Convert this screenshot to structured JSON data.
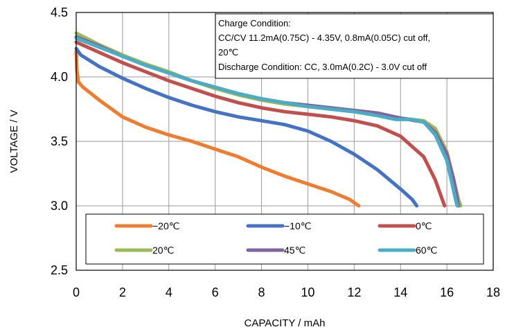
{
  "chart_data": {
    "type": "line",
    "title": "",
    "xlabel": "CAPACITY / mAh",
    "ylabel": "VOLTAGE / V",
    "xlim": [
      0,
      18
    ],
    "ylim": [
      2.5,
      4.5
    ],
    "xticks": [
      "0",
      "2",
      "4",
      "6",
      "8",
      "10",
      "12",
      "14",
      "16",
      "18"
    ],
    "yticks": [
      "2.5",
      "3.0",
      "3.5",
      "4.0",
      "4.5"
    ],
    "grid": true,
    "legend_position": "bottom inside plot",
    "annotation": {
      "lines": [
        "Charge Condition:",
        "CC/CV 11.2mA(0.75C) - 4.35V, 0.8mA(0.05C) cut off,",
        "20℃",
        "Discharge Condition: CC, 3.0mA(0.2C) - 3.0V cut off"
      ]
    },
    "series": [
      {
        "name": "−20℃",
        "color": "#ED7D31",
        "points": [
          [
            0,
            4.2
          ],
          [
            0.03,
            4.05
          ],
          [
            0.1,
            3.96
          ],
          [
            0.3,
            3.92
          ],
          [
            1,
            3.82
          ],
          [
            2,
            3.69
          ],
          [
            3,
            3.61
          ],
          [
            4,
            3.55
          ],
          [
            5,
            3.5
          ],
          [
            6,
            3.44
          ],
          [
            7,
            3.38
          ],
          [
            8,
            3.3
          ],
          [
            9,
            3.23
          ],
          [
            10,
            3.17
          ],
          [
            11,
            3.11
          ],
          [
            11.8,
            3.05
          ],
          [
            12.2,
            3.0
          ]
        ]
      },
      {
        "name": "−10℃",
        "color": "#4472C4",
        "points": [
          [
            0,
            4.22
          ],
          [
            0.2,
            4.17
          ],
          [
            1,
            4.08
          ],
          [
            2,
            3.99
          ],
          [
            3,
            3.91
          ],
          [
            4,
            3.84
          ],
          [
            5,
            3.78
          ],
          [
            6,
            3.73
          ],
          [
            7,
            3.69
          ],
          [
            8,
            3.66
          ],
          [
            9,
            3.63
          ],
          [
            10,
            3.58
          ],
          [
            11,
            3.5
          ],
          [
            12,
            3.4
          ],
          [
            13,
            3.28
          ],
          [
            14,
            3.13
          ],
          [
            14.5,
            3.05
          ],
          [
            14.7,
            3.0
          ]
        ]
      },
      {
        "name": "0℃",
        "color": "#C0504D",
        "points": [
          [
            0,
            4.27
          ],
          [
            1,
            4.19
          ],
          [
            2,
            4.11
          ],
          [
            3,
            4.04
          ],
          [
            4,
            3.97
          ],
          [
            5,
            3.91
          ],
          [
            6,
            3.85
          ],
          [
            7,
            3.8
          ],
          [
            8,
            3.76
          ],
          [
            9,
            3.73
          ],
          [
            10,
            3.71
          ],
          [
            11,
            3.69
          ],
          [
            12,
            3.66
          ],
          [
            13,
            3.62
          ],
          [
            14,
            3.54
          ],
          [
            15,
            3.38
          ],
          [
            15.5,
            3.2
          ],
          [
            15.8,
            3.05
          ],
          [
            15.9,
            3.0
          ]
        ]
      },
      {
        "name": "20℃",
        "color": "#9BBB59",
        "points": [
          [
            0,
            4.34
          ],
          [
            1,
            4.25
          ],
          [
            2,
            4.17
          ],
          [
            3,
            4.1
          ],
          [
            4,
            4.04
          ],
          [
            5,
            3.97
          ],
          [
            6,
            3.91
          ],
          [
            7,
            3.86
          ],
          [
            8,
            3.82
          ],
          [
            9,
            3.79
          ],
          [
            10,
            3.77
          ],
          [
            11,
            3.75
          ],
          [
            12,
            3.73
          ],
          [
            13,
            3.71
          ],
          [
            14,
            3.68
          ],
          [
            15,
            3.66
          ],
          [
            15.5,
            3.6
          ],
          [
            16,
            3.42
          ],
          [
            16.3,
            3.2
          ],
          [
            16.5,
            3.05
          ],
          [
            16.6,
            3.0
          ]
        ]
      },
      {
        "name": "45℃",
        "color": "#8064A2",
        "points": [
          [
            0,
            4.31
          ],
          [
            1,
            4.24
          ],
          [
            2,
            4.16
          ],
          [
            3,
            4.09
          ],
          [
            4,
            4.03
          ],
          [
            5,
            3.97
          ],
          [
            6,
            3.92
          ],
          [
            7,
            3.87
          ],
          [
            8,
            3.83
          ],
          [
            9,
            3.8
          ],
          [
            10,
            3.78
          ],
          [
            11,
            3.76
          ],
          [
            12,
            3.74
          ],
          [
            13,
            3.72
          ],
          [
            14,
            3.68
          ],
          [
            15,
            3.65
          ],
          [
            15.5,
            3.57
          ],
          [
            16,
            3.4
          ],
          [
            16.3,
            3.2
          ],
          [
            16.45,
            3.05
          ],
          [
            16.5,
            3.0
          ]
        ]
      },
      {
        "name": "60℃",
        "color": "#4BACC6",
        "points": [
          [
            0,
            4.3
          ],
          [
            1,
            4.23
          ],
          [
            2,
            4.16
          ],
          [
            3,
            4.09
          ],
          [
            4,
            4.03
          ],
          [
            5,
            3.97
          ],
          [
            6,
            3.92
          ],
          [
            7,
            3.87
          ],
          [
            8,
            3.83
          ],
          [
            9,
            3.8
          ],
          [
            10,
            3.77
          ],
          [
            11,
            3.75
          ],
          [
            12,
            3.73
          ],
          [
            13,
            3.7
          ],
          [
            13.8,
            3.67
          ],
          [
            14.5,
            3.67
          ],
          [
            15,
            3.65
          ],
          [
            15.5,
            3.55
          ],
          [
            16,
            3.35
          ],
          [
            16.25,
            3.15
          ],
          [
            16.4,
            3.03
          ],
          [
            16.45,
            3.0
          ]
        ]
      }
    ]
  }
}
